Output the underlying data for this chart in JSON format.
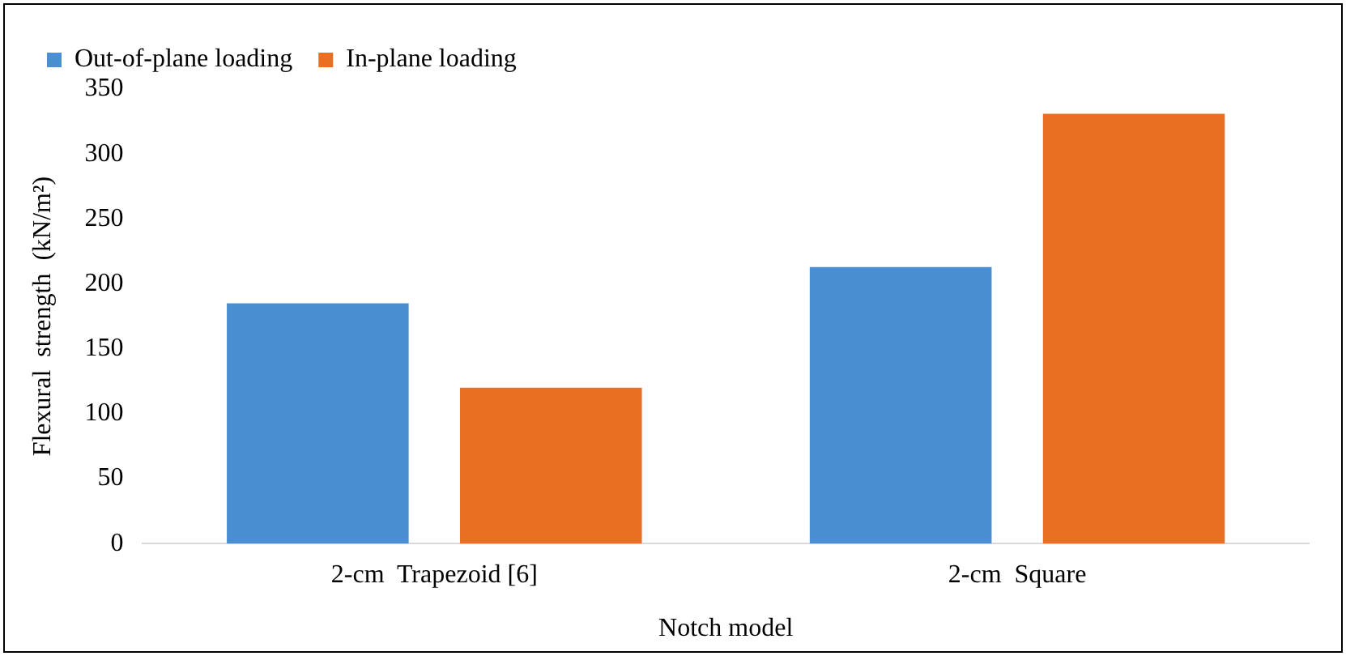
{
  "chart_data": {
    "type": "bar",
    "xlabel": "Notch model",
    "ylabel": "Flexural  strength  (kN/m²)",
    "categories": [
      "2-cm  Trapezoid [6]",
      "2-cm  Square"
    ],
    "series": [
      {
        "name": "Out-of-plane loading",
        "color": "#4a8fd4",
        "values": [
          185,
          213
        ]
      },
      {
        "name": "In-plane loading",
        "color": "#ea6f23",
        "values": [
          120,
          331
        ]
      }
    ],
    "ylim": [
      0,
      350
    ],
    "yticks": [
      0,
      50,
      100,
      150,
      200,
      250,
      300,
      350
    ],
    "grid": false,
    "legend": "top left"
  }
}
